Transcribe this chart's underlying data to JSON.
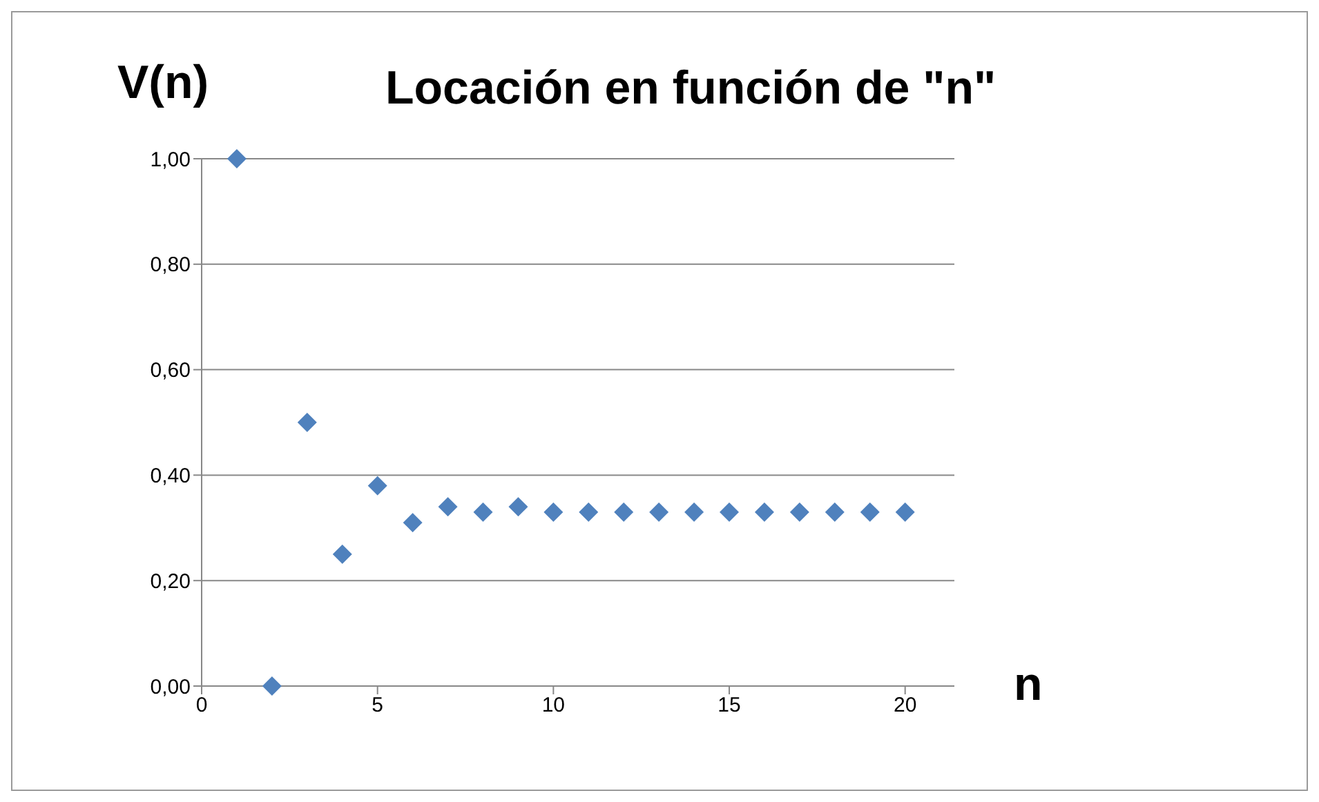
{
  "chart_data": {
    "type": "scatter",
    "title": "Locación en función de \"n\"",
    "xlabel": "n",
    "ylabel": "V(n)",
    "x": [
      1,
      2,
      3,
      4,
      5,
      6,
      7,
      8,
      9,
      10,
      11,
      12,
      13,
      14,
      15,
      16,
      17,
      18,
      19,
      20
    ],
    "series": [
      {
        "color": "#4f81bd",
        "values": [
          1,
          0,
          0.5,
          0.25,
          0.38,
          0.31,
          0.34,
          0.33,
          0.34,
          0.33,
          0.33,
          0.33,
          0.33,
          0.33,
          0.33,
          0.33,
          0.33,
          0.33,
          0.33,
          0.33
        ]
      }
    ],
    "xlim": [
      0,
      21.4
    ],
    "xticks": [
      0,
      5,
      10,
      15,
      20
    ],
    "ylim": [
      0,
      1
    ],
    "yticks": [
      {
        "value": 0,
        "label": "0,00"
      },
      {
        "value": 0.2,
        "label": "0,20"
      },
      {
        "value": 0.4,
        "label": "0,40"
      },
      {
        "value": 0.6,
        "label": "0,60"
      },
      {
        "value": 0.8,
        "label": "0,80"
      },
      {
        "value": 1,
        "label": "1,00"
      }
    ],
    "grid": "y",
    "marker": "diamond",
    "legend": false
  }
}
